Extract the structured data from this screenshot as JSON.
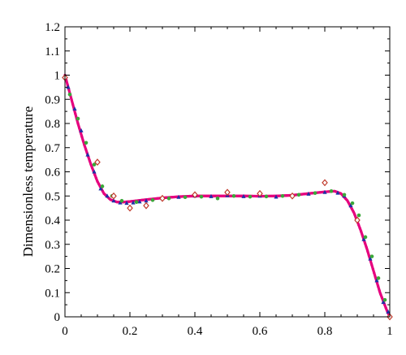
{
  "chart_data": {
    "type": "scatter",
    "title": "",
    "xlabel": "",
    "ylabel": "Dimensionless temperature",
    "xlim": [
      0,
      1
    ],
    "ylim": [
      0,
      1.2
    ],
    "x_ticks": [
      0,
      0.2,
      0.4,
      0.6,
      0.8,
      1
    ],
    "x_tick_labels": [
      "0",
      "0.2",
      "0.4",
      "0.6",
      "0.8",
      "1"
    ],
    "y_ticks": [
      0,
      0.1,
      0.2,
      0.3,
      0.4,
      0.5,
      0.6,
      0.7,
      0.8,
      0.9,
      1,
      1.1,
      1.2
    ],
    "y_tick_labels": [
      "0",
      "0.1",
      "0.2",
      "0.3",
      "0.4",
      "0.5",
      "0.6",
      "0.7",
      "0.8",
      "0.9",
      "1",
      "1.1",
      "1.2"
    ],
    "grid": false,
    "legend": "none",
    "series": [
      {
        "color": "#e6007e",
        "marker": "dense-dots",
        "x": [
          0,
          0.02,
          0.04,
          0.06,
          0.08,
          0.1,
          0.12,
          0.14,
          0.16,
          0.18,
          0.2,
          0.25,
          0.3,
          0.35,
          0.4,
          0.45,
          0.5,
          0.55,
          0.6,
          0.65,
          0.7,
          0.75,
          0.8,
          0.83,
          0.85,
          0.87,
          0.89,
          0.91,
          0.93,
          0.95,
          0.97,
          0.99,
          1
        ],
        "values": [
          1.0,
          0.9,
          0.8,
          0.71,
          0.63,
          0.56,
          0.51,
          0.485,
          0.475,
          0.475,
          0.477,
          0.485,
          0.492,
          0.497,
          0.5,
          0.5,
          0.5,
          0.5,
          0.499,
          0.5,
          0.503,
          0.51,
          0.517,
          0.52,
          0.51,
          0.48,
          0.43,
          0.36,
          0.28,
          0.19,
          0.1,
          0.03,
          0.0
        ]
      },
      {
        "color": "#1f2fa6",
        "marker": "triangle",
        "x": [
          0,
          0.01,
          0.03,
          0.05,
          0.07,
          0.09,
          0.11,
          0.13,
          0.15,
          0.17,
          0.19,
          0.21,
          0.23,
          0.25,
          0.3,
          0.35,
          0.4,
          0.45,
          0.5,
          0.55,
          0.6,
          0.65,
          0.7,
          0.75,
          0.8,
          0.84,
          0.86,
          0.88,
          0.9,
          0.92,
          0.94,
          0.96,
          0.98,
          0.995
        ],
        "values": [
          0.99,
          0.95,
          0.86,
          0.77,
          0.67,
          0.6,
          0.53,
          0.5,
          0.48,
          0.472,
          0.47,
          0.472,
          0.476,
          0.48,
          0.49,
          0.495,
          0.5,
          0.498,
          0.502,
          0.498,
          0.5,
          0.496,
          0.503,
          0.508,
          0.515,
          0.512,
          0.5,
          0.46,
          0.4,
          0.32,
          0.24,
          0.15,
          0.06,
          0.02
        ]
      },
      {
        "color": "#3aa83a",
        "marker": "circle",
        "x": [
          0.015,
          0.04,
          0.065,
          0.09,
          0.115,
          0.145,
          0.175,
          0.22,
          0.27,
          0.32,
          0.37,
          0.42,
          0.47,
          0.52,
          0.57,
          0.62,
          0.67,
          0.72,
          0.77,
          0.82,
          0.86,
          0.885,
          0.905,
          0.925,
          0.945,
          0.965,
          0.985
        ],
        "values": [
          0.92,
          0.82,
          0.72,
          0.63,
          0.54,
          0.5,
          0.48,
          0.475,
          0.483,
          0.49,
          0.495,
          0.497,
          0.49,
          0.5,
          0.497,
          0.498,
          0.5,
          0.505,
          0.512,
          0.52,
          0.505,
          0.47,
          0.42,
          0.33,
          0.25,
          0.16,
          0.07
        ]
      },
      {
        "color": "#c0392b",
        "marker": "diamond",
        "x": [
          0.0,
          0.1,
          0.15,
          0.2,
          0.25,
          0.3,
          0.4,
          0.5,
          0.6,
          0.7,
          0.8,
          0.9,
          1.0
        ],
        "values": [
          0.99,
          0.64,
          0.5,
          0.45,
          0.46,
          0.49,
          0.505,
          0.515,
          0.51,
          0.5,
          0.555,
          0.4,
          0.0
        ]
      }
    ]
  }
}
